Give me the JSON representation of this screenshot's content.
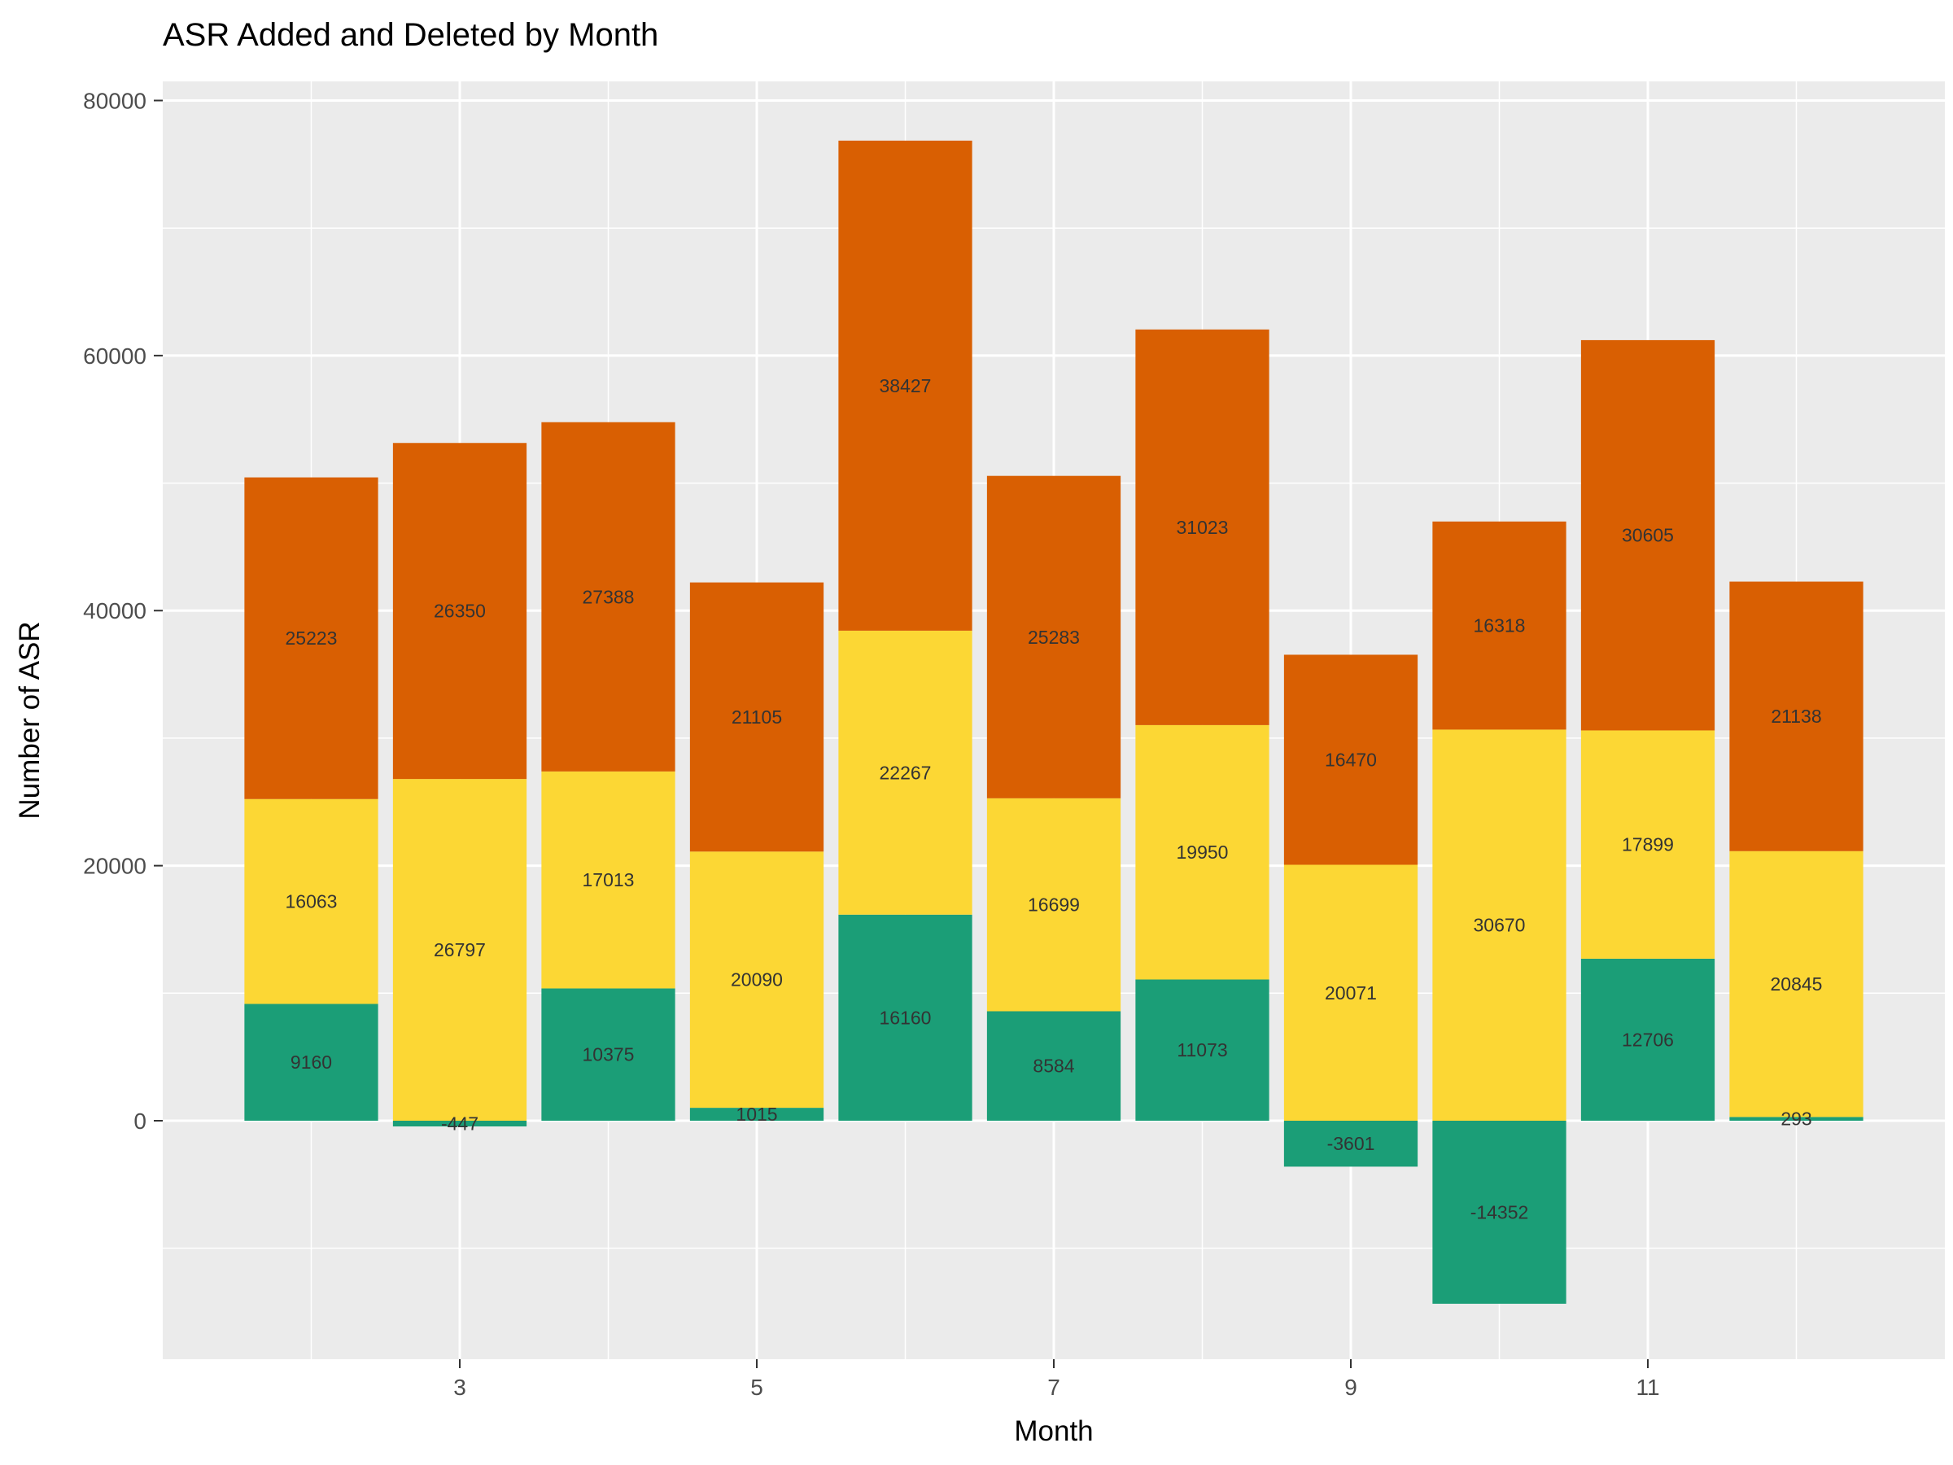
{
  "chart_data": {
    "type": "bar",
    "stacked": true,
    "title": "ASR Added and Deleted by Month",
    "xlabel": "Month",
    "ylabel": "Number of ASR",
    "x": [
      2,
      3,
      4,
      5,
      6,
      7,
      8,
      9,
      10,
      11,
      12
    ],
    "x_tick_labels": [
      "3",
      "5",
      "7",
      "9",
      "11"
    ],
    "x_tick_values": [
      3,
      5,
      7,
      9,
      11
    ],
    "xlim": [
      1,
      13
    ],
    "y_tick_labels": [
      "0",
      "20000",
      "40000",
      "60000",
      "80000"
    ],
    "y_tick_values": [
      0,
      20000,
      40000,
      60000,
      80000
    ],
    "ylim": [
      -18700,
      81500
    ],
    "grid": true,
    "legend": "none",
    "series": [
      {
        "color": "#1B9E77",
        "values": [
          9160,
          -447,
          10375,
          1015,
          16160,
          8584,
          11073,
          -3601,
          -14352,
          12706,
          293
        ]
      },
      {
        "color": "#FCD734",
        "values": [
          16063,
          26797,
          17013,
          20090,
          22267,
          16699,
          19950,
          20071,
          30670,
          17899,
          20845
        ]
      },
      {
        "color": "#D95F02",
        "values": [
          25223,
          26350,
          27388,
          21105,
          38427,
          25283,
          31023,
          16470,
          16318,
          30605,
          21138
        ]
      }
    ],
    "panel_background": "#EBEBEB",
    "grid_color": "#FFFFFF"
  }
}
